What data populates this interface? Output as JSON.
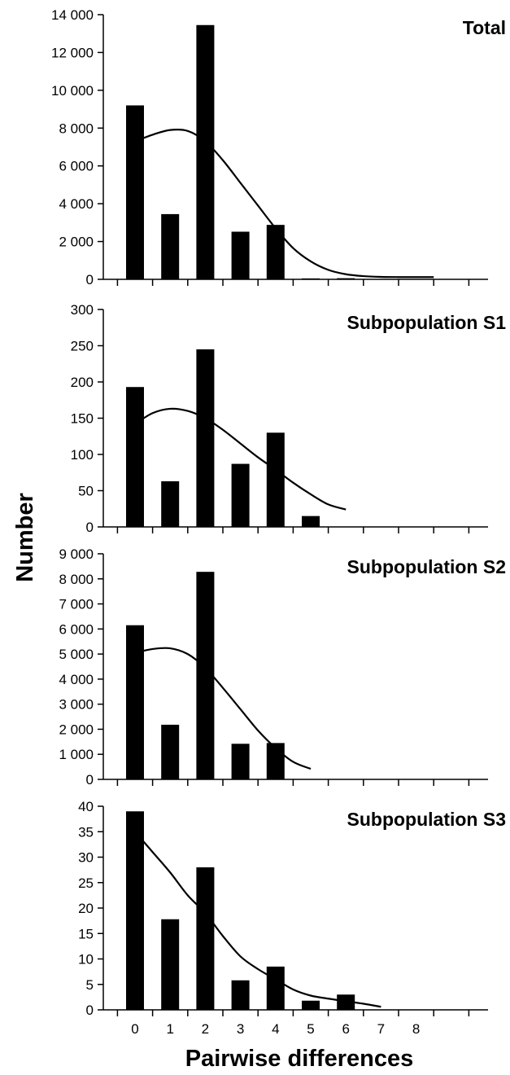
{
  "chart_data": [
    {
      "type": "bar",
      "title": "Total",
      "categories": [
        "0",
        "1",
        "2",
        "3",
        "4",
        "5",
        "6",
        "7",
        "8"
      ],
      "series": [
        {
          "kind": "bar",
          "values": [
            9200,
            3450,
            13450,
            2520,
            2880,
            50,
            60,
            null,
            null
          ]
        },
        {
          "kind": "line",
          "x": [
            0,
            0.5,
            1,
            1.5,
            2,
            2.5,
            3,
            3.5,
            4,
            4.5,
            5,
            5.5,
            6,
            6.5,
            7,
            7.5,
            8,
            8.5
          ],
          "values": [
            7300,
            7650,
            7900,
            7850,
            7300,
            6300,
            5100,
            3900,
            2700,
            1650,
            950,
            500,
            270,
            170,
            130,
            120,
            120,
            120
          ]
        }
      ],
      "ylim": [
        0,
        14000
      ],
      "yticks": [
        0,
        2000,
        4000,
        6000,
        8000,
        10000,
        12000,
        14000
      ],
      "ytick_labels": [
        "0",
        "2 000",
        "4 000",
        "6 000",
        "8 000",
        "10 000",
        "12 000",
        "14 000"
      ],
      "show_xtick_labels": false
    },
    {
      "type": "bar",
      "title": "Subpopulation S1",
      "categories": [
        "0",
        "1",
        "2",
        "3",
        "4",
        "5",
        "6",
        "7",
        "8"
      ],
      "series": [
        {
          "kind": "bar",
          "values": [
            193,
            63,
            245,
            87,
            130,
            15,
            null,
            null,
            null
          ]
        },
        {
          "kind": "line",
          "x": [
            0,
            0.5,
            1,
            1.5,
            2,
            2.5,
            3,
            3.5,
            4,
            4.5,
            5,
            5.5,
            6
          ],
          "values": [
            142,
            157,
            163,
            160,
            150,
            134,
            115,
            96,
            79,
            61,
            45,
            31,
            24
          ]
        }
      ],
      "ylim": [
        0,
        300
      ],
      "yticks": [
        0,
        50,
        100,
        150,
        200,
        250,
        300
      ],
      "ytick_labels": [
        "0",
        "50",
        "100",
        "150",
        "200",
        "250",
        "300"
      ],
      "show_xtick_labels": false
    },
    {
      "type": "bar",
      "title": "Subpopulation S2",
      "categories": [
        "0",
        "1",
        "2",
        "3",
        "4",
        "5",
        "6",
        "7",
        "8"
      ],
      "series": [
        {
          "kind": "bar",
          "values": [
            6150,
            2180,
            8280,
            1420,
            1450,
            null,
            null,
            null,
            null
          ]
        },
        {
          "kind": "line",
          "x": [
            0,
            0.5,
            1,
            1.5,
            2,
            2.5,
            3,
            3.5,
            4,
            4.5,
            5
          ],
          "values": [
            5050,
            5200,
            5230,
            5000,
            4450,
            3650,
            2800,
            1950,
            1250,
            700,
            420
          ]
        }
      ],
      "ylim": [
        0,
        9000
      ],
      "yticks": [
        0,
        1000,
        2000,
        3000,
        4000,
        5000,
        6000,
        7000,
        8000,
        9000
      ],
      "ytick_labels": [
        "0",
        "1 000",
        "2 000",
        "3 000",
        "4 000",
        "5 000",
        "6 000",
        "7 000",
        "8 000",
        "9 000"
      ],
      "show_xtick_labels": false
    },
    {
      "type": "bar",
      "title": "Subpopulation S3",
      "categories": [
        "0",
        "1",
        "2",
        "3",
        "4",
        "5",
        "6",
        "7",
        "8"
      ],
      "series": [
        {
          "kind": "bar",
          "values": [
            39,
            17.8,
            28,
            5.8,
            8.5,
            1.8,
            3,
            null,
            null
          ]
        },
        {
          "kind": "line",
          "x": [
            0,
            0.5,
            1,
            1.5,
            2,
            2.5,
            3,
            3.5,
            4,
            4.5,
            5,
            5.5,
            6,
            6.5,
            7
          ],
          "values": [
            35,
            31,
            27,
            22.5,
            19,
            14.5,
            10.5,
            8,
            6,
            4,
            2.8,
            2.2,
            1.7,
            1.2,
            0.6
          ]
        }
      ],
      "ylim": [
        0,
        40
      ],
      "yticks": [
        0,
        5,
        10,
        15,
        20,
        25,
        30,
        35,
        40
      ],
      "ytick_labels": [
        "0",
        "5",
        "10",
        "15",
        "20",
        "25",
        "30",
        "35",
        "40"
      ],
      "show_xtick_labels": true
    }
  ],
  "xlabel": "Pairwise differences",
  "ylabel": "Number"
}
